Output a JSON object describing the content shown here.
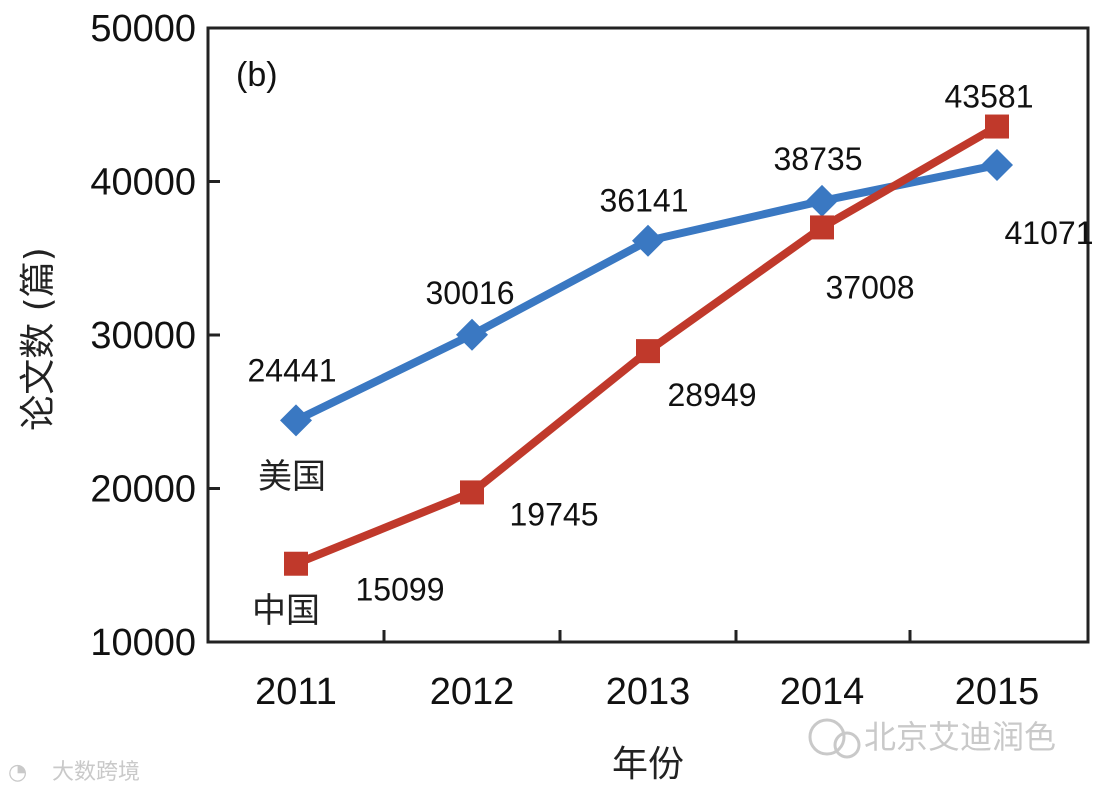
{
  "chart_data": {
    "type": "line",
    "panel_label": "(b)",
    "xlabel": "年份",
    "ylabel": "论文数 (篇)",
    "categories": [
      "2011",
      "2012",
      "2013",
      "2014",
      "2015"
    ],
    "ylim": [
      10000,
      50000
    ],
    "yticks": [
      10000,
      20000,
      30000,
      40000,
      50000
    ],
    "series": [
      {
        "name": "美国",
        "color": "#3a78c2",
        "marker": "diamond",
        "values": [
          24441,
          30016,
          36141,
          38735,
          41071
        ]
      },
      {
        "name": "中国",
        "color": "#c0392b",
        "marker": "square",
        "values": [
          15099,
          19745,
          28949,
          37008,
          43581
        ]
      }
    ]
  },
  "watermarks": {
    "right": "北京艾迪润色",
    "left": "大数跨境"
  }
}
